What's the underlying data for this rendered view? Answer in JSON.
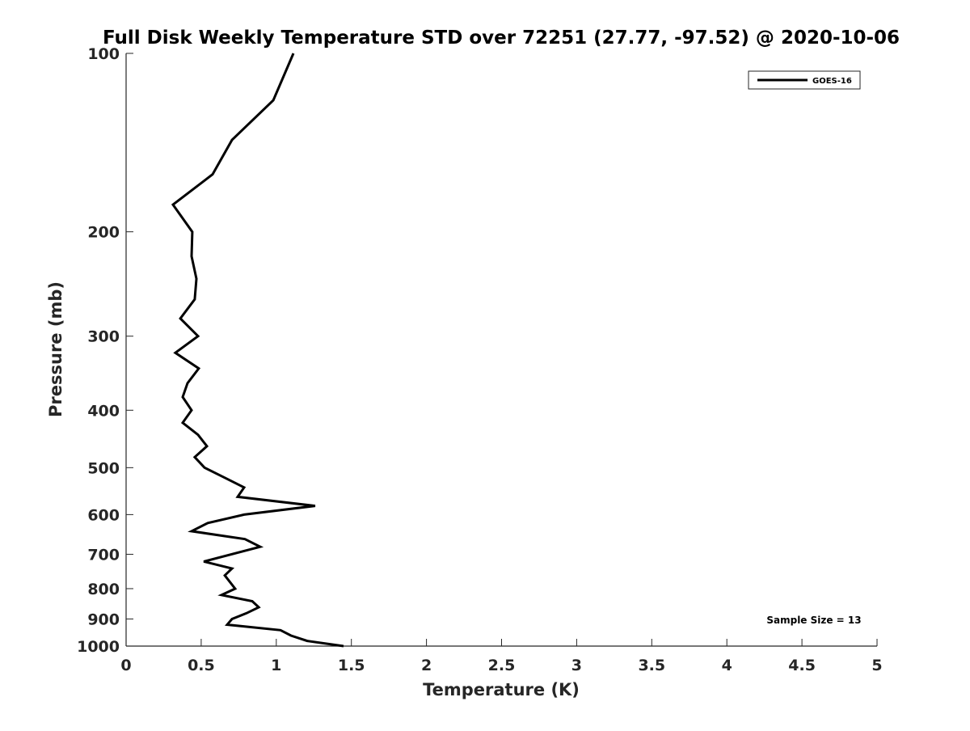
{
  "chart_data": {
    "type": "line",
    "title": "Full Disk Weekly Temperature STD over 72251 (27.77, -97.52) @ 2020-10-06",
    "xlabel": "Temperature (K)",
    "ylabel": "Pressure (mb)",
    "xlim": [
      0,
      5
    ],
    "ylim": [
      100,
      1000
    ],
    "yscale": "log",
    "yreversed": true,
    "xticks": [
      "0",
      "0.5",
      "1",
      "1.5",
      "2",
      "2.5",
      "3",
      "3.5",
      "4",
      "4.5",
      "5"
    ],
    "xtick_values": [
      0,
      0.5,
      1,
      1.5,
      2,
      2.5,
      3,
      3.5,
      4,
      4.5,
      5
    ],
    "yticks": [
      "100",
      "200",
      "300",
      "400",
      "500",
      "600",
      "700",
      "800",
      "900",
      "1000"
    ],
    "ytick_values": [
      100,
      200,
      300,
      400,
      500,
      600,
      700,
      800,
      900,
      1000
    ],
    "grid": false,
    "legend_placement": "top-right",
    "annotation": "Sample Size = 13",
    "series": [
      {
        "name": "GOES-16",
        "color": "#000000",
        "points": [
          [
            1.114,
            100
          ],
          [
            0.98,
            120
          ],
          [
            0.705,
            140
          ],
          [
            0.576,
            160
          ],
          [
            0.312,
            180
          ],
          [
            0.441,
            200
          ],
          [
            0.436,
            220
          ],
          [
            0.468,
            240
          ],
          [
            0.457,
            260
          ],
          [
            0.361,
            280
          ],
          [
            0.479,
            300
          ],
          [
            0.328,
            320
          ],
          [
            0.484,
            340
          ],
          [
            0.409,
            360
          ],
          [
            0.377,
            380
          ],
          [
            0.436,
            400
          ],
          [
            0.377,
            420
          ],
          [
            0.479,
            440
          ],
          [
            0.538,
            460
          ],
          [
            0.457,
            480
          ],
          [
            0.522,
            500
          ],
          [
            0.657,
            520
          ],
          [
            0.786,
            540
          ],
          [
            0.743,
            560
          ],
          [
            1.259,
            580
          ],
          [
            0.786,
            600
          ],
          [
            0.544,
            620
          ],
          [
            0.436,
            640
          ],
          [
            0.791,
            660
          ],
          [
            0.893,
            680
          ],
          [
            0.517,
            720
          ],
          [
            0.705,
            740
          ],
          [
            0.657,
            760
          ],
          [
            0.726,
            800
          ],
          [
            0.635,
            820
          ],
          [
            0.84,
            840
          ],
          [
            0.883,
            860
          ],
          [
            0.802,
            880
          ],
          [
            0.705,
            900
          ],
          [
            0.673,
            920
          ],
          [
            1.028,
            940
          ],
          [
            1.098,
            960
          ],
          [
            1.206,
            980
          ],
          [
            1.448,
            1000
          ]
        ]
      }
    ]
  }
}
